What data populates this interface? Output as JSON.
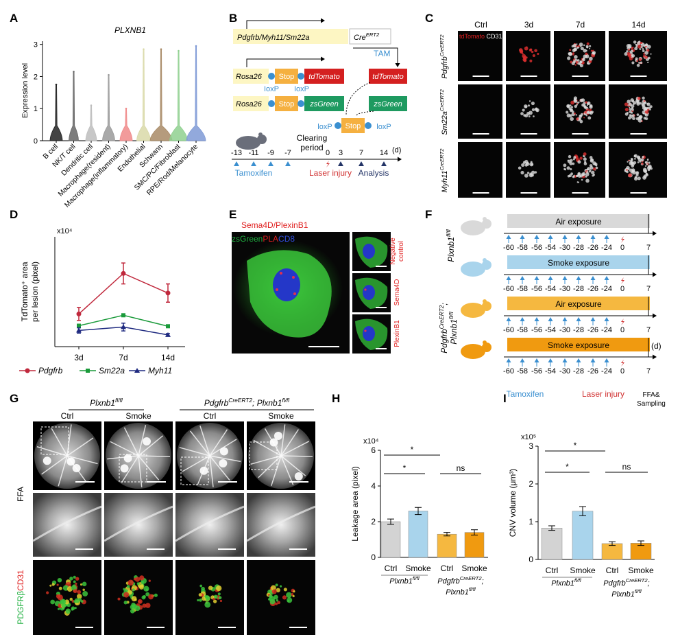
{
  "panel_letters": [
    "A",
    "B",
    "C",
    "D",
    "E",
    "F",
    "G",
    "H",
    "I"
  ],
  "chart_data": [
    {
      "type": "violin",
      "title": "PLXNB1",
      "y_label": "Expression level",
      "categories": [
        "B cell",
        "NK/T cell",
        "Dendritic cell",
        "Macrophage(resident)",
        "Macrophage(inflammatory)",
        "Endothelial",
        "Schwann",
        "SMC/PC/Fibroblast",
        "RPE/Rod/Melanocyte"
      ],
      "values": [
        1.75,
        2.15,
        1.1,
        2.05,
        1.0,
        2.85,
        2.85,
        2.8,
        2.95
      ],
      "colors": [
        "#222222",
        "#666666",
        "#bdbdbd",
        "#9a9a9a",
        "#f08a8a",
        "#d9d9a8",
        "#a88a66",
        "#8fd08f",
        "#7f9ad6"
      ],
      "ylim": [
        0,
        3.1
      ],
      "yticks": [
        0,
        1,
        2,
        3
      ]
    },
    {
      "type": "line",
      "y_label": [
        "TdTomato⁺ area",
        "per lesion (pixel)"
      ],
      "multiplier": "x10⁴",
      "categories": [
        "3d",
        "7d",
        "14d"
      ],
      "series": [
        {
          "name": "Pdgfrb",
          "color": "#c0283c",
          "marker": "circle",
          "values": [
            1.25,
            2.8,
            2.05
          ],
          "errors": [
            0.25,
            0.4,
            0.35
          ]
        },
        {
          "name": "Sm22a",
          "color": "#1a9a3a",
          "marker": "square",
          "values": [
            0.8,
            1.2,
            0.78
          ],
          "errors": [
            0.06,
            0.04,
            0.04
          ]
        },
        {
          "name": "Myh11",
          "color": "#1f2a80",
          "marker": "triangle",
          "values": [
            0.62,
            0.75,
            0.45
          ],
          "errors": [
            0.1,
            0.15,
            0.05
          ]
        }
      ],
      "ylim": [
        0,
        4.2
      ]
    },
    {
      "type": "bar",
      "y_label": "Leakage area (pixel)",
      "multiplier": "x10⁴",
      "categories": [
        "Ctrl",
        "Smoke",
        "Ctrl",
        "Smoke"
      ],
      "values": [
        2.0,
        2.6,
        1.3,
        1.4
      ],
      "errors": [
        0.15,
        0.2,
        0.1,
        0.15
      ],
      "colors": [
        "#d3d3d3",
        "#a9d4ec",
        "#f5b840",
        "#f09a10"
      ],
      "ylim": [
        0,
        6
      ],
      "yticks": [
        0,
        2,
        4,
        6
      ],
      "groups": [
        [
          [
            {
              "text": "Plxnb1"
            },
            {
              "text": "fl/fl",
              "sup": true
            }
          ]
        ],
        [
          [
            {
              "text": "Pdgfrb"
            },
            {
              "text": "CreERT2",
              "sup": true
            },
            {
              "text": ";"
            }
          ],
          [
            {
              "text": "Plxnb1"
            },
            {
              "text": "fl/fl",
              "sup": true
            }
          ]
        ]
      ],
      "significance": [
        "*",
        "*",
        "ns"
      ]
    },
    {
      "type": "bar",
      "y_label": "CNV volume (μm³)",
      "multiplier": "x10⁵",
      "categories": [
        "Ctrl",
        "Smoke",
        "Ctrl",
        "Smoke"
      ],
      "values": [
        0.83,
        1.28,
        0.42,
        0.43
      ],
      "errors": [
        0.06,
        0.12,
        0.05,
        0.06
      ],
      "colors": [
        "#d3d3d3",
        "#a9d4ec",
        "#f5b840",
        "#f09a10"
      ],
      "ylim": [
        0,
        3
      ],
      "yticks": [
        0,
        1,
        2,
        3
      ],
      "groups": [
        [
          [
            {
              "text": "Plxnb1"
            },
            {
              "text": "fl/fl",
              "sup": true
            }
          ]
        ],
        [
          [
            {
              "text": "Pdgfrb"
            },
            {
              "text": "CreERT2",
              "sup": true
            },
            {
              "text": ";"
            }
          ],
          [
            {
              "text": "Plxnb1"
            },
            {
              "text": "fl/fl",
              "sup": true
            }
          ]
        ]
      ],
      "significance": [
        "*",
        "*",
        "ns"
      ]
    }
  ],
  "panel_b": {
    "driver": "Pdgfrb/Myh11/Sm22a",
    "cre": [
      {
        "text": "Cre"
      },
      {
        "text": "ERT2",
        "sup": true
      }
    ],
    "tam": "TAM",
    "reporters": [
      {
        "locus": "Rosa26",
        "stop": "Stop",
        "gene": "tdTomato",
        "color": "#d42020",
        "product": "tdTomato"
      },
      {
        "locus": "Rosa26",
        "stop": "Stop",
        "gene": "zsGreen",
        "color": "#1e9a60",
        "product": "zsGreen"
      }
    ],
    "loxp_labels": [
      "IoxP",
      "IoxP"
    ],
    "recombined": {
      "left": "loxP",
      "stop": "Stop",
      "right": "loxP"
    },
    "clearing": [
      "Clearing",
      "period"
    ],
    "days": [
      -13,
      -11,
      -9,
      -7,
      0,
      3,
      7,
      14
    ],
    "unit": "(d)",
    "events": [
      "Tamoxifen",
      "Laser injury",
      "Analysis"
    ]
  },
  "panel_c": {
    "columns": [
      "Ctrl",
      "3d",
      "7d",
      "14d"
    ],
    "rows": [
      [
        {
          "text": "Pdgfrb"
        },
        {
          "text": "CreERT2",
          "sup": true
        }
      ],
      [
        {
          "text": "Sm22a"
        },
        {
          "text": "CreERT2",
          "sup": true
        }
      ],
      [
        {
          "text": "Myh11"
        },
        {
          "text": "CreERT2",
          "sup": true
        }
      ]
    ],
    "stain": [
      {
        "text": "tdTomato",
        "color": "#e02020"
      },
      {
        "text": " CD31",
        "color": "#ffffff"
      }
    ]
  },
  "panel_e": {
    "title": "Sema4D/PlexinB1",
    "channels": [
      {
        "text": "zsGreen",
        "color": "#20b040"
      },
      {
        "text": "PLA",
        "color": "#e02020"
      },
      {
        "text": "CD8",
        "color": "#3050e0"
      }
    ],
    "side_labels": [
      [
        "Negative",
        "control"
      ],
      [
        "Sema4D"
      ],
      [
        "PlexinB1"
      ]
    ]
  },
  "panel_f": {
    "rows": [
      {
        "exposure": "Air exposure",
        "color": "#d9d9d9"
      },
      {
        "exposure": "Smoke exposure",
        "color": "#a9d4ec"
      },
      {
        "exposure": "Air exposure",
        "color": "#f5b840"
      },
      {
        "exposure": "Smoke exposure",
        "color": "#f09a10"
      }
    ],
    "genotypes": [
      [
        [
          {
            "text": "Plxnb1"
          },
          {
            "text": "fl/fl",
            "sup": true
          }
        ]
      ],
      [
        [
          {
            "text": "Pdgfrb"
          },
          {
            "text": "CreERT2",
            "sup": true
          },
          {
            "text": ";"
          }
        ],
        [
          {
            "text": "Plxnb1"
          },
          {
            "text": "fl/fl",
            "sup": true
          }
        ]
      ]
    ],
    "days": [
      -60,
      -58,
      -56,
      -54,
      -30,
      -28,
      -26,
      -24,
      0,
      7
    ],
    "unit": "(d)",
    "events": [
      "Tamoxifen",
      "Laser injury"
    ],
    "sampling": [
      "FFA&",
      "Sampling"
    ]
  },
  "panel_g": {
    "groups": [
      [
        {
          "text": "Plxnb1"
        },
        {
          "text": "fl/fl",
          "sup": true
        }
      ],
      [
        {
          "text": "Pdgfrb"
        },
        {
          "text": "CreERT2",
          "sup": true
        },
        {
          "text": "; Plxnb1"
        },
        {
          "text": "fl/fl",
          "sup": true
        }
      ]
    ],
    "columns": [
      "Ctrl",
      "Smoke",
      "Ctrl",
      "Smoke"
    ],
    "ffa": "FFA",
    "stain": [
      {
        "text": "PDGFRβ",
        "color": "#20b040"
      },
      {
        "text": "CD31",
        "color": "#e02020"
      }
    ]
  }
}
